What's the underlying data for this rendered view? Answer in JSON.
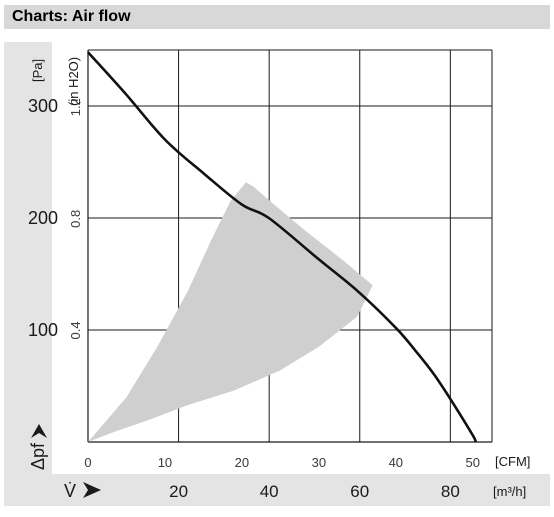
{
  "header": {
    "title": "Charts: Air flow"
  },
  "chart_data": {
    "type": "line",
    "title": "Charts: Air flow",
    "y_primary": {
      "symbol": "Δpf",
      "unit": "[Pa]",
      "ticks": [
        100,
        200,
        300
      ],
      "ylim": [
        0,
        350
      ]
    },
    "y_secondary": {
      "unit": "(in H2O)",
      "ticks": [
        "0.4",
        "0.8",
        "1.2"
      ]
    },
    "x_primary": {
      "unit": "[CFM]",
      "ticks": [
        0,
        10,
        20,
        30,
        40,
        50
      ],
      "xlim": [
        0,
        52.5
      ]
    },
    "x_secondary": {
      "symbol": "V̇",
      "unit": "[m³/h]",
      "ticks": [
        20,
        40,
        60,
        80
      ]
    },
    "grid": true,
    "series": [
      {
        "x": [
          0,
          5,
          10,
          15,
          20,
          23.5,
          30,
          35,
          40,
          42.5,
          45,
          47.5,
          50,
          50.4
        ],
        "y": [
          348,
          310,
          270,
          240,
          212,
          200,
          163,
          135,
          102,
          82,
          60,
          34,
          6,
          0
        ]
      }
    ],
    "operating_region": {
      "upper_x": [
        20.5,
        21.5,
        24,
        28,
        33,
        37,
        35,
        30,
        25,
        19,
        13,
        8,
        3,
        0
      ],
      "upper_y": [
        232,
        228,
        213,
        190,
        163,
        140,
        112,
        85,
        64,
        46,
        33,
        20,
        8,
        0
      ],
      "lower_x": [
        0,
        5,
        9,
        13,
        16,
        18.5,
        20.5
      ],
      "lower_y": [
        0,
        40,
        85,
        135,
        180,
        215,
        232
      ]
    },
    "colors": {
      "curve": "#111111",
      "region": "#cfcfcf",
      "grid": "#1a1a1a",
      "panel": "#e4e4e4",
      "header": "#d8d8d8"
    }
  }
}
